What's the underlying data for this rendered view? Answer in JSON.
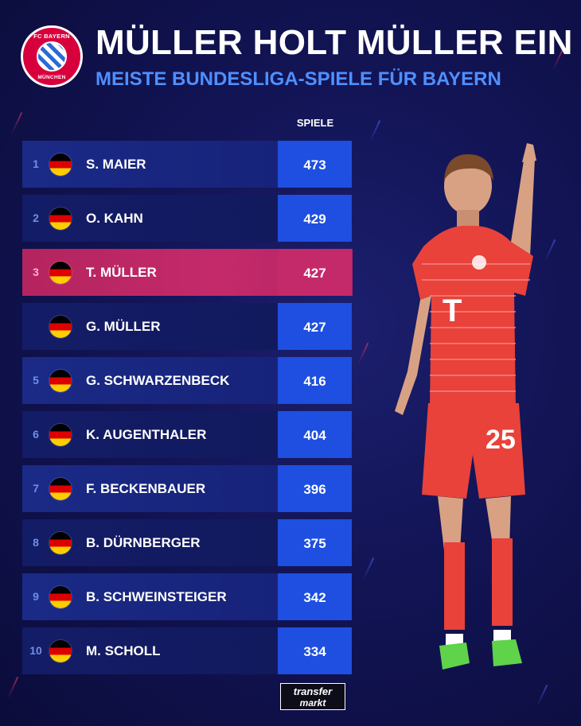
{
  "header": {
    "logo_top": "FC BAYERN",
    "logo_bottom": "MÜNCHEN",
    "title": "MÜLLER HOLT MÜLLER EIN",
    "subtitle": "MEISTE BUNDESLIGA-SPIELE FÜR BAYERN",
    "column_label": "SPIELE"
  },
  "rows": [
    {
      "rank": "1",
      "name": "S. MAIER",
      "value": "473"
    },
    {
      "rank": "2",
      "name": "O. KAHN",
      "value": "429"
    },
    {
      "rank": "3",
      "name": "T. MÜLLER",
      "value": "427"
    },
    {
      "rank": "",
      "name": "G. MÜLLER",
      "value": "427"
    },
    {
      "rank": "5",
      "name": "G. SCHWARZENBECK",
      "value": "416"
    },
    {
      "rank": "6",
      "name": "K. AUGENTHALER",
      "value": "404"
    },
    {
      "rank": "7",
      "name": "F. BECKENBAUER",
      "value": "396"
    },
    {
      "rank": "8",
      "name": "B. DÜRNBERGER",
      "value": "375"
    },
    {
      "rank": "9",
      "name": "B. SCHWEINSTEIGER",
      "value": "342"
    },
    {
      "rank": "10",
      "name": "M. SCHOLL",
      "value": "334"
    }
  ],
  "player": {
    "shirt_number": "25",
    "shirt_sponsor": "T"
  },
  "footer": {
    "brand_top": "transfer",
    "brand_bottom": "markt"
  },
  "colors": {
    "accent_blue": "#1e4fe0",
    "highlight_pink": "#c42a6a",
    "subtitle_blue": "#4f8fff"
  },
  "icons": [
    "germany-flag-icon"
  ]
}
